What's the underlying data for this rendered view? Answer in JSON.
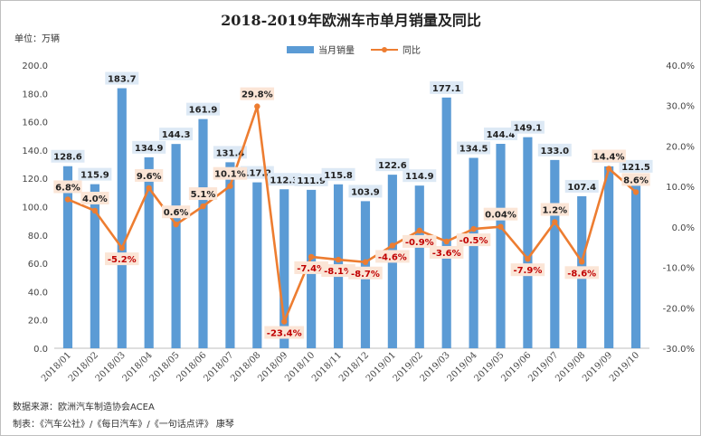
{
  "chart_data": {
    "type": "bar",
    "title": "2018-2019年欧洲车市单月销量及同比",
    "unit_label": "单位：万辆",
    "categories": [
      "2018/01",
      "2018/02",
      "2018/03",
      "2018/04",
      "2018/05",
      "2018/06",
      "2018/07",
      "2018/08",
      "2018/09",
      "2018/10",
      "2018/11",
      "2018/12",
      "2019/01",
      "2019/02",
      "2019/03",
      "2019/04",
      "2019/05",
      "2019/06",
      "2019/07",
      "2019/08",
      "2019/09",
      "2019/10"
    ],
    "series": [
      {
        "name": "当月销量",
        "type": "bar",
        "axis": "left",
        "color": "#5b9bd5",
        "values": [
          128.6,
          115.9,
          183.7,
          134.9,
          144.3,
          161.9,
          131.4,
          117.2,
          112.3,
          111.9,
          115.8,
          103.9,
          122.6,
          114.9,
          177.1,
          134.5,
          144.4,
          149.1,
          133.0,
          107.4,
          128.5,
          121.5
        ],
        "labels": [
          "128.6",
          "115.9",
          "183.7",
          "134.9",
          "144.3",
          "161.9",
          "131.4",
          "117.2",
          "112.3",
          "111.9",
          "115.8",
          "103.9",
          "122.6",
          "114.9",
          "177.1",
          "134.5",
          "144.4",
          "149.1",
          "133.0",
          "107.4",
          "128.5",
          "121.5"
        ]
      },
      {
        "name": "同比",
        "type": "line",
        "axis": "right",
        "color": "#ed7d31",
        "values": [
          6.8,
          4.0,
          -5.2,
          9.6,
          0.6,
          5.1,
          10.1,
          29.8,
          -23.4,
          -7.4,
          -8.1,
          -8.7,
          -4.6,
          -0.9,
          -3.6,
          -0.5,
          0.04,
          -7.9,
          1.2,
          -8.6,
          14.4,
          8.6
        ],
        "labels": [
          "6.8%",
          "4.0%",
          "-5.2%",
          "9.6%",
          "0.6%",
          "5.1%",
          "10.1%",
          "29.8%",
          "-23.4%",
          "-7.4%",
          "-8.1%",
          "-8.7%",
          "-4.6%",
          "-0.9%",
          "-3.6%",
          "-0.5%",
          "0.04%",
          "-7.9%",
          "1.2%",
          "-8.6%",
          "14.4%",
          "8.6%"
        ]
      }
    ],
    "y_left": {
      "min": 0,
      "max": 200,
      "step": 20,
      "tick_labels": [
        "0.0",
        "20.0",
        "40.0",
        "60.0",
        "80.0",
        "100.0",
        "120.0",
        "140.0",
        "160.0",
        "180.0",
        "200.0"
      ]
    },
    "y_right": {
      "min": -30,
      "max": 40,
      "step": 10,
      "tick_labels": [
        "-30.0%",
        "-20.0%",
        "-10.0%",
        "0.0%",
        "10.0%",
        "20.0%",
        "30.0%",
        "40.0%"
      ]
    },
    "grid": false,
    "legend_position": "top-right"
  },
  "footer": {
    "source": "数据来源：欧洲汽车制造协会ACEA",
    "maker": "制表：《汽车公社》/《每日汽车》/《一句话点评》 康琴"
  }
}
